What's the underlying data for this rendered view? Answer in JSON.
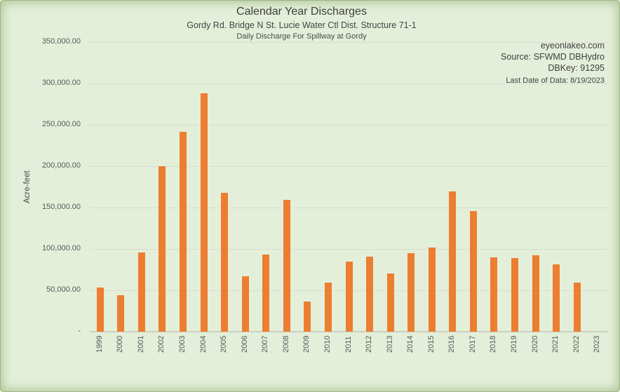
{
  "header": {
    "title": "Calendar Year Discharges",
    "subtitle1": "Gordy Rd. Bridge N St. Lucie Water Ctl Dist. Structure 71-1",
    "subtitle2": "Daily Discharge For Spillway at Gordy"
  },
  "annotations": {
    "website": "eyeonlakeo.com",
    "source": "Source: SFWMD DBHydro",
    "dbkey": "DBKey: 91295",
    "last_date": "Last Date of Data: 8/19/2023"
  },
  "chart_data": {
    "type": "bar",
    "title": "Calendar Year Discharges",
    "xlabel": "",
    "ylabel": "Acre-feet",
    "ylim": [
      0,
      350000
    ],
    "ytick_interval": 50000,
    "grid": true,
    "legend": "none",
    "bar_color": "#ED7D31",
    "background_color": "#E4EFD9",
    "gridline_color": "#D8DBD2",
    "yticks": [
      {
        "value": 350000,
        "label": "350,000.00"
      },
      {
        "value": 300000,
        "label": "300,000.00"
      },
      {
        "value": 250000,
        "label": "250,000.00"
      },
      {
        "value": 200000,
        "label": "200,000.00"
      },
      {
        "value": 150000,
        "label": "150,000.00"
      },
      {
        "value": 100000,
        "label": "100,000.00"
      },
      {
        "value": 50000,
        "label": "50,000.00"
      },
      {
        "value": 0,
        "label": "-"
      }
    ],
    "categories": [
      "1999",
      "2000",
      "2001",
      "2002",
      "2003",
      "2004",
      "2005",
      "2006",
      "2007",
      "2008",
      "2009",
      "2010",
      "2011",
      "2012",
      "2013",
      "2014",
      "2015",
      "2016",
      "2017",
      "2018",
      "2019",
      "2020",
      "2021",
      "2022",
      "2023"
    ],
    "values": [
      53500,
      44500,
      95500,
      200000,
      241500,
      288000,
      168000,
      67000,
      93500,
      159500,
      36500,
      59500,
      85000,
      91000,
      70000,
      95000,
      101500,
      169500,
      146000,
      89500,
      89000,
      92500,
      81000,
      59500,
      0
    ]
  }
}
